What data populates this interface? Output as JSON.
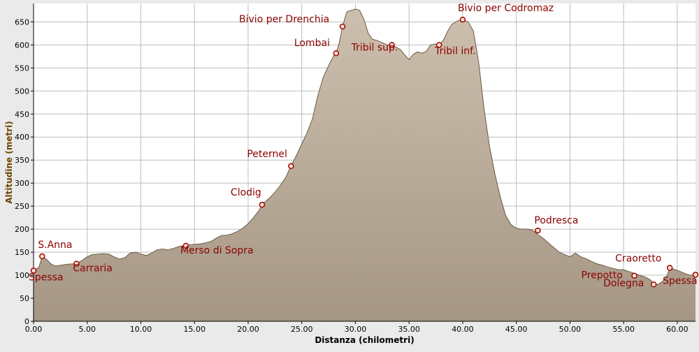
{
  "chart_data": {
    "type": "area",
    "title": "",
    "xlabel": "Distanza (chilometri)",
    "ylabel": "Altitudine (metri)",
    "xlim": [
      0,
      61.7
    ],
    "ylim": [
      0,
      690
    ],
    "x_ticks": [
      0,
      5,
      10,
      15,
      20,
      25,
      30,
      35,
      40,
      45,
      50,
      55,
      60
    ],
    "x_tick_labels": [
      "0.00",
      "5.00",
      "10.00",
      "15.00",
      "20.00",
      "25.00",
      "30.00",
      "35.00",
      "40.00",
      "45.00",
      "50.00",
      "55.00",
      "60.00"
    ],
    "y_ticks": [
      0,
      50,
      100,
      150,
      200,
      250,
      300,
      350,
      400,
      450,
      500,
      550,
      600,
      650
    ],
    "y_tick_labels": [
      "0",
      "50",
      "100",
      "150",
      "200",
      "250",
      "300",
      "350",
      "400",
      "450",
      "500",
      "550",
      "600",
      "650"
    ],
    "grid": true,
    "legend": "none",
    "series": [
      {
        "x": [
          0,
          0.5,
          0.8,
          1.2,
          1.6,
          2,
          2.6,
          3.2,
          4,
          4.5,
          5,
          5.5,
          6,
          6.5,
          7,
          7.5,
          8,
          8.5,
          9,
          9.6,
          10,
          10.5,
          11,
          11.5,
          12,
          12.5,
          13,
          13.5,
          14.2,
          15,
          15.5,
          16,
          16.5,
          17,
          17.5,
          18,
          18.5,
          19,
          19.5,
          20,
          20.5,
          21,
          21.3,
          22,
          22.5,
          23,
          23.5,
          24,
          24.5,
          25,
          25.5,
          26,
          26.5,
          27,
          27.5,
          28,
          28.2,
          28.5,
          28.8,
          29.2,
          29.6,
          30,
          30.4,
          30.8,
          31.2,
          31.6,
          32,
          32.5,
          33,
          33.4,
          33.8,
          34.2,
          34.6,
          35,
          35.4,
          35.8,
          36.2,
          36.6,
          37,
          37.4,
          37.8,
          38.2,
          38.6,
          39,
          39.5,
          40,
          40.5,
          41,
          41.5,
          42,
          42.5,
          43,
          43.5,
          44,
          44.5,
          45,
          45.5,
          46,
          46.5,
          47,
          47.5,
          48,
          48.5,
          49,
          49.5,
          50,
          50.5,
          51,
          51.5,
          52,
          52.5,
          53,
          53.5,
          54,
          54.5,
          55,
          55.5,
          56,
          56.5,
          57,
          57.5,
          57.8,
          58.2,
          58.6,
          59,
          59.3,
          59.8,
          60.3,
          60.8,
          61.2,
          61.7
        ],
        "y": [
          108,
          118,
          140,
          135,
          125,
          120,
          122,
          124,
          125,
          132,
          140,
          145,
          146,
          147,
          146,
          140,
          135,
          138,
          148,
          150,
          146,
          143,
          148,
          155,
          157,
          155,
          158,
          162,
          165,
          167,
          168,
          170,
          173,
          180,
          186,
          187,
          190,
          195,
          202,
          212,
          225,
          240,
          253,
          268,
          280,
          295,
          312,
          338,
          360,
          385,
          410,
          440,
          490,
          530,
          555,
          578,
          582,
          605,
          640,
          672,
          675,
          678,
          675,
          655,
          625,
          612,
          610,
          605,
          600,
          600,
          595,
          590,
          578,
          568,
          580,
          585,
          582,
          586,
          600,
          602,
          600,
          610,
          630,
          645,
          652,
          655,
          650,
          630,
          560,
          460,
          380,
          320,
          270,
          230,
          210,
          202,
          200,
          200,
          198,
          188,
          180,
          170,
          160,
          150,
          145,
          140,
          148,
          140,
          136,
          130,
          125,
          122,
          118,
          115,
          112,
          112,
          108,
          104,
          100,
          96,
          90,
          82,
          80,
          86,
          96,
          116,
          112,
          108,
          103,
          100,
          101
        ]
      }
    ],
    "waypoints": [
      {
        "x": 0.0,
        "y": 110,
        "label": "Spessa"
      },
      {
        "x": 0.8,
        "y": 141,
        "label": "S.Anna"
      },
      {
        "x": 4.0,
        "y": 125,
        "label": "Carraria"
      },
      {
        "x": 14.2,
        "y": 164,
        "label": "Merso di Sopra"
      },
      {
        "x": 21.3,
        "y": 253,
        "label": "Clodig"
      },
      {
        "x": 24.0,
        "y": 337,
        "label": "Peternel"
      },
      {
        "x": 28.2,
        "y": 582,
        "label": "Lombai"
      },
      {
        "x": 28.8,
        "y": 640,
        "label": "Bivio per Drenchia"
      },
      {
        "x": 33.4,
        "y": 600,
        "label": "Tribil sup."
      },
      {
        "x": 37.8,
        "y": 600,
        "label": "Tribil inf."
      },
      {
        "x": 40.0,
        "y": 655,
        "label": "Bivio per Codromaz"
      },
      {
        "x": 47.0,
        "y": 197,
        "label": "Podresca"
      },
      {
        "x": 56.0,
        "y": 99,
        "label": "Prepotto"
      },
      {
        "x": 57.8,
        "y": 80,
        "label": "Dolegna"
      },
      {
        "x": 59.3,
        "y": 116,
        "label": "Craoretto"
      },
      {
        "x": 61.7,
        "y": 101,
        "label": "Spessa"
      }
    ]
  },
  "colors": {
    "area_top": "#cdbfae",
    "area_bottom": "#a69785",
    "profile_line": "#6b5a45",
    "label": "#8b0000",
    "marker": "#a30000",
    "grid": "#bdbdbd",
    "plot_bg": "#ffffff",
    "axis_title": "#6b4500"
  }
}
